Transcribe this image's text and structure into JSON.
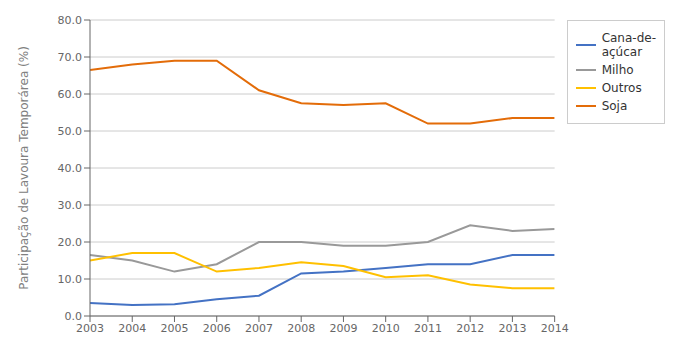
{
  "chart_data": {
    "type": "line",
    "ylabel": "Participação de Lavoura Temporárea (%)",
    "x": [
      2003,
      2004,
      2005,
      2006,
      2007,
      2008,
      2009,
      2010,
      2011,
      2012,
      2013,
      2014
    ],
    "series": [
      {
        "name": "Cana-de-\naçúcar",
        "color": "#4472c4",
        "values": [
          3.5,
          3.0,
          3.2,
          4.5,
          5.5,
          11.5,
          12.0,
          13.0,
          14.0,
          14.0,
          16.5,
          16.5
        ]
      },
      {
        "name": "Soja",
        "color": "#e36c09",
        "values": [
          66.5,
          68.0,
          69.0,
          69.0,
          61.0,
          57.5,
          57.0,
          57.5,
          52.0,
          52.0,
          53.5,
          53.5
        ]
      },
      {
        "name": "Milho",
        "color": "#999999",
        "values": [
          16.5,
          15.0,
          12.0,
          14.0,
          20.0,
          20.0,
          19.0,
          19.0,
          20.0,
          24.5,
          23.0,
          23.5
        ]
      },
      {
        "name": "Outros",
        "color": "#ffc000",
        "values": [
          15.0,
          17.0,
          17.0,
          12.0,
          13.0,
          14.5,
          13.5,
          10.5,
          11.0,
          8.5,
          7.5,
          7.5
        ]
      }
    ],
    "xlim": [
      2003,
      2014
    ],
    "xticks": [
      2003,
      2004,
      2005,
      2006,
      2007,
      2008,
      2009,
      2010,
      2011,
      2012,
      2013,
      2014
    ],
    "ylim": [
      0,
      80
    ],
    "yticks": [
      {
        "value": 0,
        "label": "0.0"
      },
      {
        "value": 10,
        "label": "10.0"
      },
      {
        "value": 20,
        "label": "20.0"
      },
      {
        "value": 30,
        "label": "30.0"
      },
      {
        "value": 40,
        "label": "40.0"
      },
      {
        "value": 50,
        "label": "50.0"
      },
      {
        "value": 60,
        "label": "60.0"
      },
      {
        "value": 70,
        "label": "70.0"
      },
      {
        "value": 80,
        "label": "80.0"
      }
    ],
    "grid": true,
    "legend": "upper right"
  }
}
